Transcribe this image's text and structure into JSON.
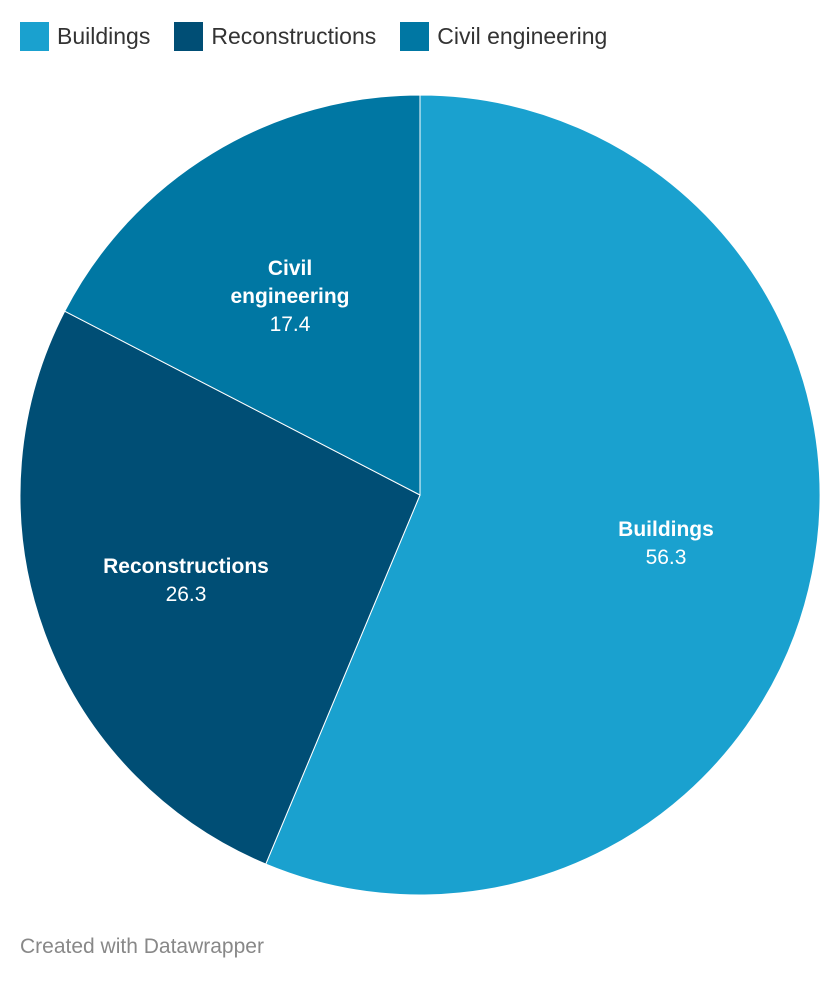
{
  "chart_data": {
    "type": "pie",
    "categories": [
      "Buildings",
      "Reconstructions",
      "Civil engineering"
    ],
    "values": [
      56.3,
      26.3,
      17.4
    ],
    "colors": [
      "#1aa1cf",
      "#004e75",
      "#0077a3"
    ],
    "value_labels": [
      "56.3",
      "26.3",
      "17.4"
    ],
    "slice_label_lines": [
      [
        "Buildings"
      ],
      [
        "Reconstructions"
      ],
      [
        "Civil",
        "engineering"
      ]
    ],
    "legend_position": "top-left",
    "title": ""
  },
  "footer": {
    "credit": "Created with Datawrapper"
  }
}
